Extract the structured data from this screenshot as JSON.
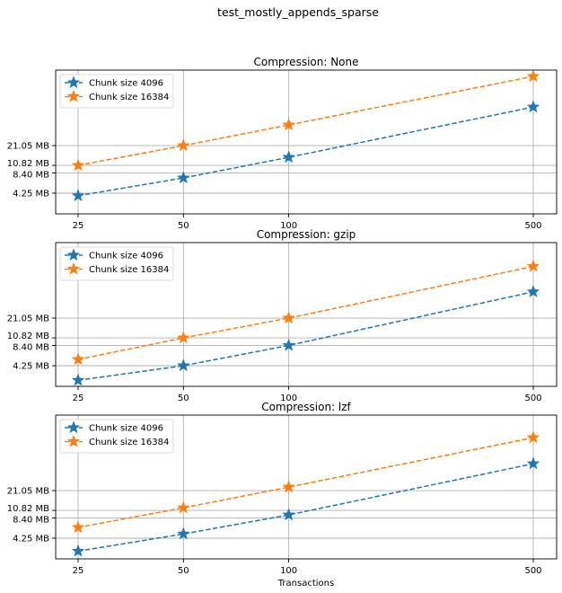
{
  "figure": {
    "suptitle": "test_mostly_appends_sparse",
    "xlabel": "Transactions"
  },
  "colors": {
    "series_4096": "#1f77b4",
    "series_16384": "#ff7f0e",
    "grid": "#b0b0b0",
    "axes": "#000000"
  },
  "chart_data": [
    {
      "type": "line",
      "title": "Compression: None",
      "xscale": "log",
      "yscale": "log",
      "x": [
        25,
        50,
        100,
        500
      ],
      "xticks": [
        "25",
        "50",
        "100",
        "500"
      ],
      "yticks": [
        {
          "value": 4.25,
          "label": "4.25 MB"
        },
        {
          "value": 8.4,
          "label": "8.40 MB"
        },
        {
          "value": 10.82,
          "label": "10.82 MB"
        },
        {
          "value": 21.05,
          "label": "21.05 MB"
        }
      ],
      "ylabel": "",
      "xlabel": "",
      "grid": true,
      "legend_position": "upper left",
      "series": [
        {
          "name": "Chunk size 4096",
          "color": "#1f77b4",
          "marker": "star",
          "linestyle": "dashed",
          "values": [
            3.9,
            7.1,
            14.2,
            77
          ]
        },
        {
          "name": "Chunk size 16384",
          "color": "#ff7f0e",
          "marker": "star",
          "linestyle": "dashed",
          "values": [
            10.82,
            21.05,
            42.2,
            216
          ]
        }
      ]
    },
    {
      "type": "line",
      "title": "Compression: gzip",
      "xscale": "log",
      "yscale": "log",
      "x": [
        25,
        50,
        100,
        500
      ],
      "xticks": [
        "25",
        "50",
        "100",
        "500"
      ],
      "yticks": [
        {
          "value": 4.25,
          "label": "4.25 MB"
        },
        {
          "value": 8.4,
          "label": "8.40 MB"
        },
        {
          "value": 10.82,
          "label": "10.82 MB"
        },
        {
          "value": 21.05,
          "label": "21.05 MB"
        }
      ],
      "ylabel": "",
      "xlabel": "",
      "grid": true,
      "legend_position": "upper left",
      "series": [
        {
          "name": "Chunk size 4096",
          "color": "#1f77b4",
          "marker": "star",
          "linestyle": "dashed",
          "values": [
            2.6,
            4.25,
            8.4,
            51
          ]
        },
        {
          "name": "Chunk size 16384",
          "color": "#ff7f0e",
          "marker": "star",
          "linestyle": "dashed",
          "values": [
            5.25,
            10.82,
            21.05,
            120
          ]
        }
      ]
    },
    {
      "type": "line",
      "title": "Compression: lzf",
      "xscale": "log",
      "yscale": "log",
      "x": [
        25,
        50,
        100,
        500
      ],
      "xticks": [
        "25",
        "50",
        "100",
        "500"
      ],
      "yticks": [
        {
          "value": 4.25,
          "label": "4.25 MB"
        },
        {
          "value": 8.4,
          "label": "8.40 MB"
        },
        {
          "value": 10.82,
          "label": "10.82 MB"
        },
        {
          "value": 21.05,
          "label": "21.05 MB"
        }
      ],
      "ylabel": "",
      "xlabel": "Transactions",
      "grid": true,
      "legend_position": "upper left",
      "series": [
        {
          "name": "Chunk size 4096",
          "color": "#1f77b4",
          "marker": "star",
          "linestyle": "dashed",
          "values": [
            2.75,
            4.9,
            9.3,
            52
          ]
        },
        {
          "name": "Chunk size 16384",
          "color": "#ff7f0e",
          "marker": "star",
          "linestyle": "dashed",
          "values": [
            6.1,
            11.8,
            23.7,
            125
          ]
        }
      ]
    }
  ]
}
